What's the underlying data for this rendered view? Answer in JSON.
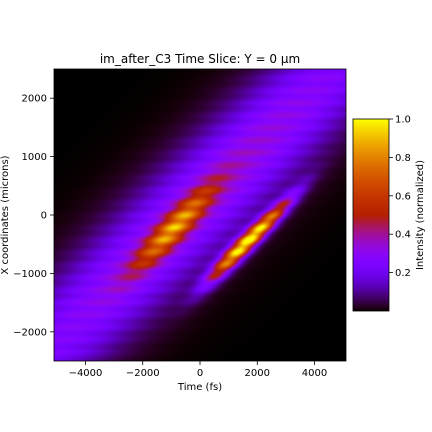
{
  "chart_data": {
    "type": "heatmap",
    "title": "im_after_C3 Time Slice: Y = 0 µm",
    "xlabel": "Time (fs)",
    "ylabel": "X coordinates (microns)",
    "xlim": [
      -5100,
      5100
    ],
    "ylim": [
      -2500,
      2500
    ],
    "xticks": [
      -4000,
      -2000,
      0,
      2000,
      4000
    ],
    "xtick_labels": [
      "−4000",
      "−2000",
      "0",
      "2000",
      "4000"
    ],
    "yticks": [
      -2000,
      -1000,
      0,
      1000,
      2000
    ],
    "ytick_labels": [
      "−2000",
      "−1000",
      "0",
      "1000",
      "2000"
    ],
    "colormap": "gnuplot",
    "colorbar": {
      "label": "Intensity (normalized)",
      "range": [
        0.0,
        1.0
      ],
      "ticks": [
        0.2,
        0.4,
        0.6,
        0.8,
        1.0
      ],
      "tick_labels": [
        "0.2",
        "0.4",
        "0.6",
        "0.8",
        "1.0"
      ]
    },
    "features": [
      {
        "shape": "diagonal-band",
        "slope_um_per_fs": 0.47,
        "intercept_um": 230,
        "width_um": 1400,
        "peak_intensity": 0.38
      },
      {
        "shape": "bright-lobe",
        "center": [
          -900,
          -220
        ],
        "extent_fs": 2800,
        "width_um": 360,
        "peak_intensity": 0.6
      },
      {
        "shape": "bright-lobe",
        "center": [
          2100,
          -250
        ],
        "extent_fs": 2500,
        "width_um": 230,
        "peak_intensity": 0.82
      },
      {
        "shape": "bright-lobe",
        "center": [
          1100,
          -720
        ],
        "extent_fs": 2200,
        "width_um": 260,
        "peak_intensity": 0.55
      }
    ]
  }
}
